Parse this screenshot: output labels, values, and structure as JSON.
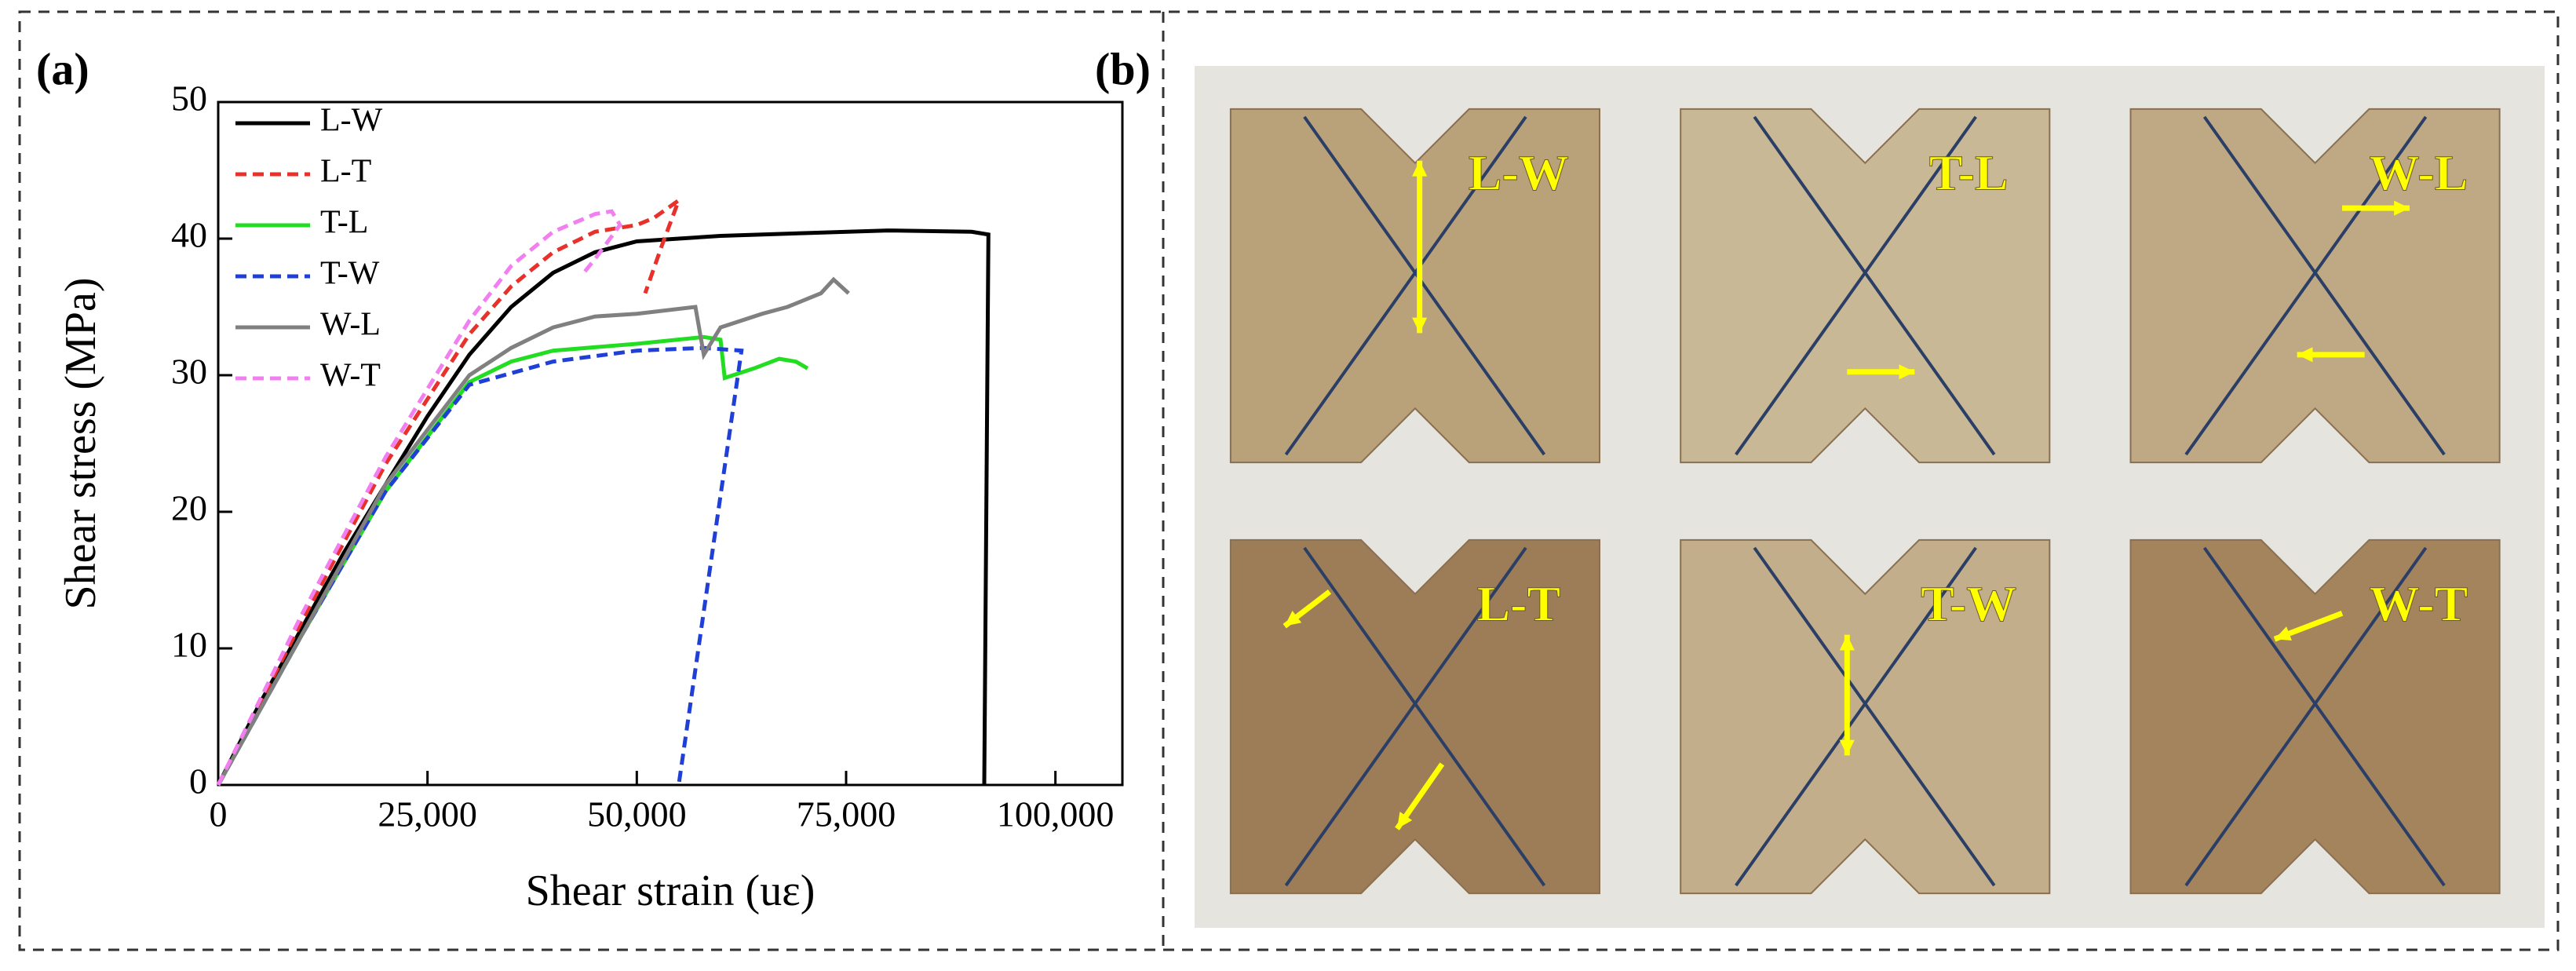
{
  "panel_labels": [
    "(a)",
    "(b)"
  ],
  "chart_data": {
    "type": "line",
    "xlabel": "Shear strain (uε)",
    "ylabel": "Shear stress (MPa)",
    "xlim": [
      0,
      108000
    ],
    "ylim": [
      0,
      50
    ],
    "xticks": [
      0,
      {
        "value": 25000,
        "label": "25,000"
      },
      {
        "value": 50000,
        "label": "50,000"
      },
      {
        "value": 75000,
        "label": "75,000"
      },
      {
        "value": 100000,
        "label": "100,000"
      }
    ],
    "yticks": [
      0,
      10,
      20,
      30,
      40,
      50
    ],
    "grid": false,
    "legend": "upper left",
    "series": [
      {
        "name": "L-W",
        "color": "#000000",
        "dashed": false,
        "x": [
          0,
          5000,
          10000,
          15000,
          20000,
          25000,
          30000,
          35000,
          40000,
          45000,
          50000,
          55000,
          60000,
          70000,
          80000,
          90000,
          92000,
          91500
        ],
        "values": [
          0,
          6,
          11.5,
          17,
          22,
          27,
          31.5,
          35,
          37.5,
          39,
          39.8,
          40,
          40.2,
          40.4,
          40.6,
          40.5,
          40.3,
          0
        ]
      },
      {
        "name": "L-T",
        "color": "#e8312a",
        "dashed": true,
        "x": [
          0,
          10000,
          20000,
          30000,
          35000,
          40000,
          45000,
          50000,
          52000,
          55000,
          53000,
          51000
        ],
        "values": [
          0,
          12,
          23.5,
          33,
          36.5,
          39,
          40.5,
          41,
          41.5,
          42.8,
          39.5,
          36
        ]
      },
      {
        "name": "T-L",
        "color": "#22dd22",
        "dashed": false,
        "x": [
          0,
          10000,
          20000,
          30000,
          35000,
          40000,
          50000,
          58000,
          60000,
          60500,
          64000,
          67000,
          69000,
          70400
        ],
        "values": [
          0,
          11,
          21.5,
          29.5,
          31,
          31.8,
          32.3,
          32.8,
          32.6,
          29.8,
          30.5,
          31.2,
          31,
          30.5
        ]
      },
      {
        "name": "T-W",
        "color": "#1f3fd6",
        "dashed": true,
        "x": [
          0,
          10000,
          20000,
          30000,
          40000,
          50000,
          58000,
          62500,
          55000
        ],
        "values": [
          0,
          11,
          21.5,
          29.3,
          31,
          31.8,
          32,
          31.8,
          0
        ]
      },
      {
        "name": "W-L",
        "color": "#808080",
        "dashed": false,
        "x": [
          0,
          10000,
          20000,
          30000,
          35000,
          40000,
          45000,
          50000,
          57000,
          58000,
          60000,
          65000,
          68000,
          72000,
          73500,
          75300
        ],
        "values": [
          0,
          11,
          22,
          30,
          32,
          33.5,
          34.3,
          34.5,
          35,
          31.5,
          33.5,
          34.5,
          35,
          36,
          37,
          36
        ]
      },
      {
        "name": "W-T",
        "color": "#f27ff0",
        "dashed": true,
        "x": [
          0,
          10000,
          20000,
          30000,
          35000,
          40000,
          45000,
          47000,
          48000,
          45000,
          43800
        ],
        "values": [
          0,
          12.5,
          24,
          34,
          38,
          40.5,
          41.8,
          42,
          41,
          38.5,
          37.6
        ]
      }
    ]
  },
  "photos": {
    "labels": [
      "L-W",
      "T-L",
      "W-L",
      "L-T",
      "T-W",
      "W-T"
    ]
  }
}
